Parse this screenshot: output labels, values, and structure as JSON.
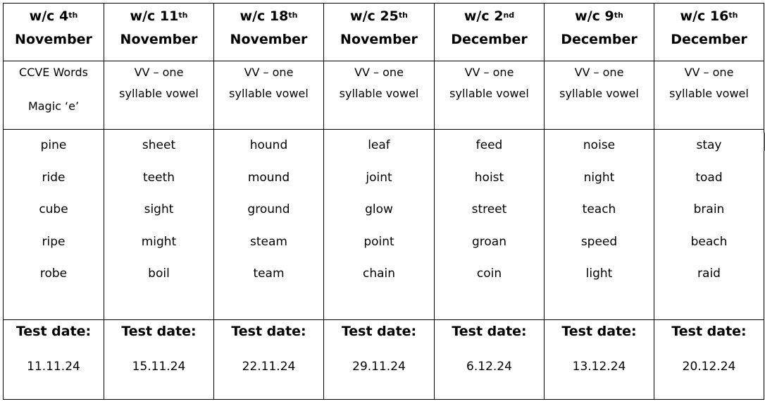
{
  "columns": [
    {
      "week_prefix": "w/c 4",
      "week_suffix": "th",
      "month": "November",
      "type_lines": [
        "CCVE Words",
        "Magic ‘e’"
      ],
      "words": [
        "pine",
        "ride",
        "cube",
        "ripe",
        "robe"
      ],
      "test_label": "Test date:",
      "test_date": "11.11.24"
    },
    {
      "week_prefix": "w/c 11",
      "week_suffix": "th",
      "month": "November",
      "type_lines": [
        "VV – one",
        "syllable vowel"
      ],
      "words": [
        "sheet",
        "teeth",
        "sight",
        "might",
        "boil"
      ],
      "test_label": "Test date:",
      "test_date": "15.11.24"
    },
    {
      "week_prefix": "w/c 18",
      "week_suffix": "th",
      "month": "November",
      "type_lines": [
        "VV – one",
        "syllable vowel"
      ],
      "words": [
        "hound",
        "mound",
        "ground",
        "steam",
        "team"
      ],
      "test_label": "Test date:",
      "test_date": "22.11.24"
    },
    {
      "week_prefix": "w/c 25",
      "week_suffix": "th",
      "month": "November",
      "type_lines": [
        "VV – one",
        "syllable vowel"
      ],
      "words": [
        "leaf",
        "joint",
        "glow",
        "point",
        "chain"
      ],
      "test_label": "Test date:",
      "test_date": "29.11.24"
    },
    {
      "week_prefix": "w/c 2",
      "week_suffix": "nd",
      "month": "December",
      "type_lines": [
        "VV – one",
        "syllable vowel"
      ],
      "words": [
        "feed",
        "hoist",
        "street",
        "groan",
        "coin"
      ],
      "test_label": "Test date:",
      "test_date": "6.12.24"
    },
    {
      "week_prefix": "w/c 9",
      "week_suffix": "th",
      "month": "December",
      "type_lines": [
        "VV – one",
        "syllable vowel"
      ],
      "words": [
        "noise",
        "night",
        "teach",
        "speed",
        "light"
      ],
      "test_label": "Test date:",
      "test_date": "13.12.24"
    },
    {
      "week_prefix": "w/c 16",
      "week_suffix": "th",
      "month": "December",
      "type_lines": [
        "VV – one",
        "syllable vowel"
      ],
      "words": [
        "stay",
        "toad",
        "brain",
        "beach",
        "raid"
      ],
      "test_label": "Test date:",
      "test_date": "20.12.24"
    }
  ]
}
